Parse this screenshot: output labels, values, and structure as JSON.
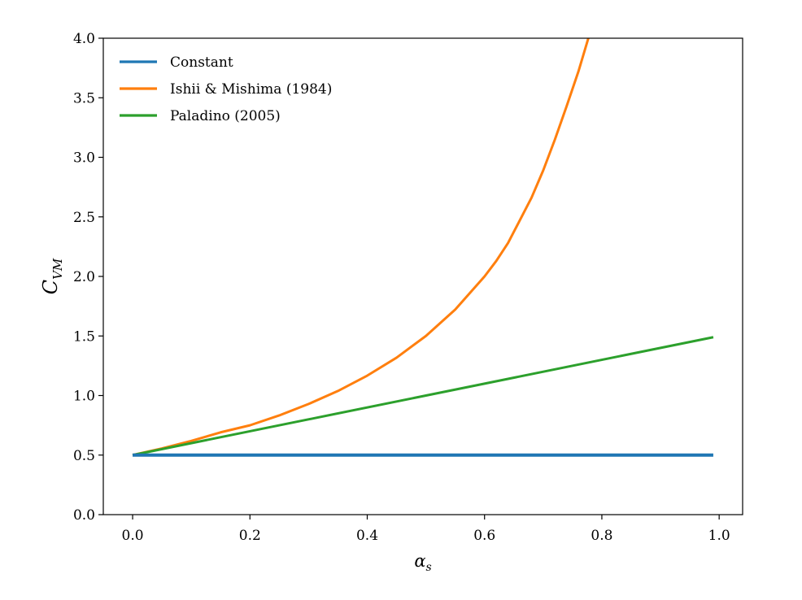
{
  "chart_data": {
    "type": "line",
    "xlabel": {
      "main": "α",
      "sub": "s"
    },
    "ylabel": {
      "main": "C",
      "sub": "VM"
    },
    "xlim": [
      -0.05,
      1.04
    ],
    "ylim": [
      0.0,
      4.0
    ],
    "grid": false,
    "legend_position": "top-left",
    "xticks": [
      0.0,
      0.2,
      0.4,
      0.6,
      0.8,
      1.0
    ],
    "xtick_labels": [
      "0.0",
      "0.2",
      "0.4",
      "0.6",
      "0.8",
      "1.0"
    ],
    "yticks": [
      0.0,
      0.5,
      1.0,
      1.5,
      2.0,
      2.5,
      3.0,
      3.5,
      4.0
    ],
    "ytick_labels": [
      "0.0",
      "0.5",
      "1.0",
      "1.5",
      "2.0",
      "2.5",
      "3.0",
      "3.5",
      "4.0"
    ],
    "series": [
      {
        "name": "Constant",
        "color": "#1f77b4",
        "x": [
          0.0,
          0.99
        ],
        "y": [
          0.5,
          0.5
        ]
      },
      {
        "name": "Ishii & Mishima (1984)",
        "color": "#ff7f0e",
        "x": [
          0.0,
          0.05,
          0.1,
          0.15,
          0.2,
          0.25,
          0.3,
          0.35,
          0.4,
          0.45,
          0.5,
          0.55,
          0.6,
          0.62,
          0.64,
          0.66,
          0.68,
          0.7,
          0.72,
          0.74,
          0.76,
          0.78
        ],
        "y": [
          0.5,
          0.556,
          0.619,
          0.691,
          0.75,
          0.833,
          0.929,
          1.038,
          1.167,
          1.318,
          1.5,
          1.722,
          2.0,
          2.13,
          2.28,
          2.47,
          2.66,
          2.89,
          3.15,
          3.43,
          3.72,
          4.05
        ]
      },
      {
        "name": "Paladino (2005)",
        "color": "#2ca02c",
        "x": [
          0.0,
          0.99
        ],
        "y": [
          0.5,
          1.49
        ]
      }
    ]
  }
}
